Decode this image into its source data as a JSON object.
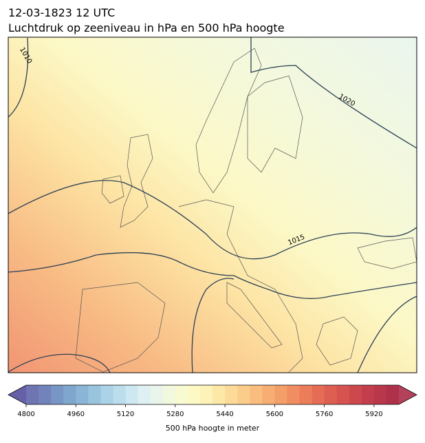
{
  "header": {
    "title": "12-03-1823 12 UTC",
    "subtitle": "Luchtdruk op zeeniveau in hPa en 500 hPa hoogte"
  },
  "contour_labels": [
    "1010",
    "1020",
    "1015"
  ],
  "colorbar": {
    "label": "500 hPa hoogte in meter",
    "lim": [
      4800,
      6000
    ],
    "ticks": [
      4800,
      4960,
      5120,
      5280,
      5440,
      5600,
      5760,
      5920
    ],
    "colors": [
      "#6f74b3",
      "#7283bb",
      "#7795c5",
      "#7fa6cd",
      "#8ab5d6",
      "#9ac4de",
      "#abd2e6",
      "#bcdeec",
      "#cde8f1",
      "#def0f1",
      "#e9f5ea",
      "#f2f8de",
      "#f8fad1",
      "#fdf9c5",
      "#fdf2b7",
      "#fde8a8",
      "#fcdb99",
      "#fbcd8b",
      "#f9be7f",
      "#f7ae73",
      "#f49e69",
      "#f08e61",
      "#eb7d5a",
      "#e56d55",
      "#de5f52",
      "#d6534f",
      "#cd484d",
      "#c23e4c",
      "#b8374b",
      "#ae3049"
    ],
    "extend_colors": [
      "#6560a8",
      "#b4415b"
    ]
  }
}
